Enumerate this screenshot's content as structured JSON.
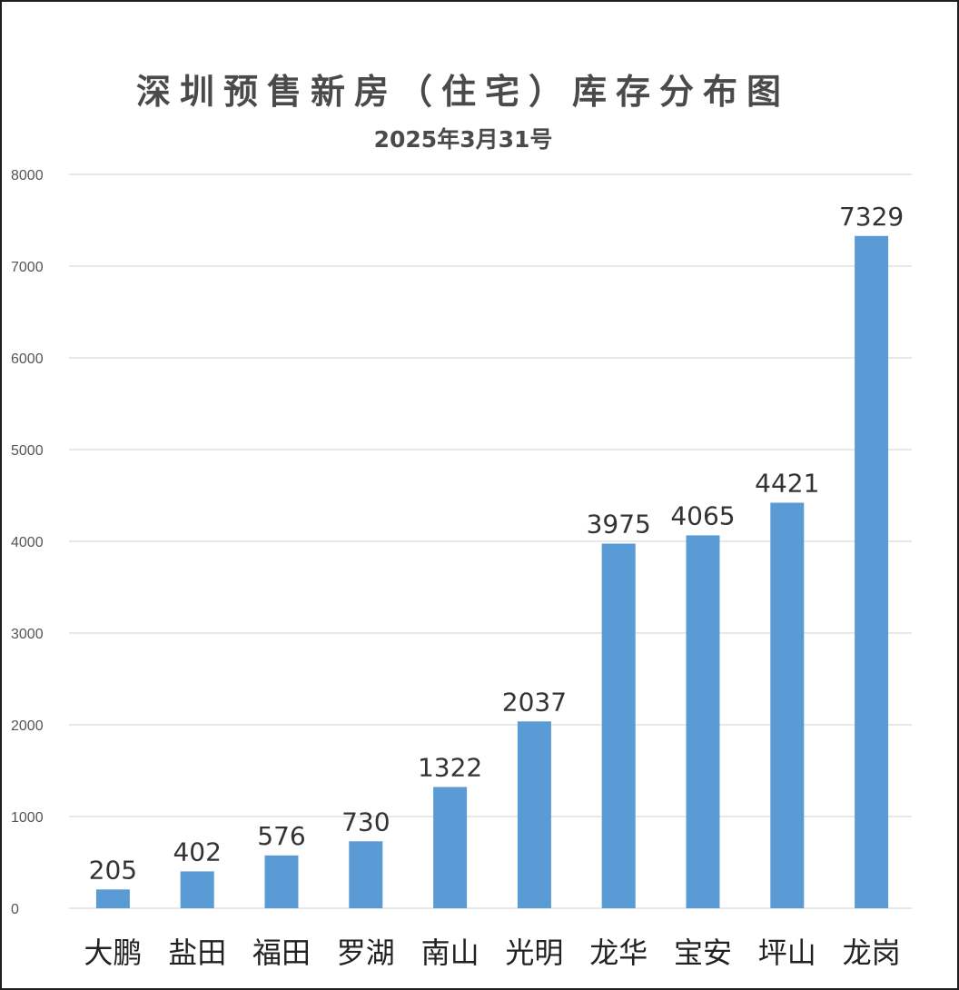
{
  "chart_data": {
    "type": "bar",
    "title": "深圳预售新房（住宅）库存分布图",
    "subtitle": "2025年3月31号",
    "categories": [
      "大鹏",
      "盐田",
      "福田",
      "罗湖",
      "南山",
      "光明",
      "龙华",
      "宝安",
      "坪山",
      "龙岗"
    ],
    "series": [
      {
        "values": [
          205,
          402,
          576,
          730,
          1322,
          2037,
          3975,
          4065,
          4421,
          7329
        ]
      }
    ],
    "ylim": [
      0,
      8000
    ],
    "yticks": [
      0,
      1000,
      2000,
      3000,
      4000,
      5000,
      6000,
      7000,
      8000
    ],
    "grid": true,
    "bar_color": "#5b9bd5",
    "gridline_color": "#d9d9d9",
    "legend": "none"
  }
}
